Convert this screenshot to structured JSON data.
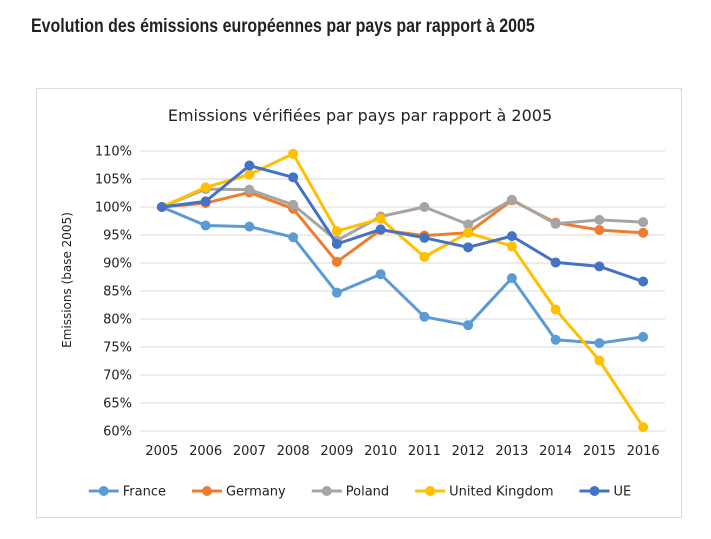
{
  "page": {
    "heading": "Evolution des émissions européennes par pays par rapport à 2005"
  },
  "chart_data": {
    "type": "line",
    "title": "Emissions vérifiées par pays par rapport à 2005",
    "xlabel": "",
    "ylabel": "Emissions (base 2005)",
    "x": [
      2005,
      2006,
      2007,
      2008,
      2009,
      2010,
      2011,
      2012,
      2013,
      2014,
      2015,
      2016
    ],
    "ylim": [
      60,
      110
    ],
    "ytick_step": 5,
    "ytick_suffix": "%",
    "grid": true,
    "legend_position": "bottom",
    "series": [
      {
        "name": "France",
        "color": "#5b9bd5",
        "values": [
          100,
          96.7,
          96.5,
          94.6,
          84.7,
          88.0,
          80.4,
          78.9,
          87.3,
          76.3,
          75.7,
          76.8
        ]
      },
      {
        "name": "Germany",
        "color": "#ed7d31",
        "values": [
          100,
          100.7,
          102.6,
          99.7,
          90.2,
          95.9,
          94.9,
          95.4,
          101.2,
          97.2,
          95.9,
          95.4
        ]
      },
      {
        "name": "Poland",
        "color": "#a5a5a5",
        "values": [
          100,
          103.2,
          103.1,
          100.4,
          94.0,
          98.3,
          100.0,
          96.9,
          101.3,
          97.0,
          97.7,
          97.3
        ]
      },
      {
        "name": "United Kingdom",
        "color": "#ffc000",
        "values": [
          100,
          103.5,
          105.8,
          109.5,
          95.7,
          97.9,
          91.1,
          95.4,
          93.0,
          81.7,
          72.6,
          60.7
        ]
      },
      {
        "name": "UE",
        "color": "#4472c4",
        "values": [
          100,
          101.0,
          107.4,
          105.3,
          93.4,
          96.0,
          94.5,
          92.8,
          94.8,
          90.1,
          89.4,
          86.7
        ]
      }
    ]
  }
}
